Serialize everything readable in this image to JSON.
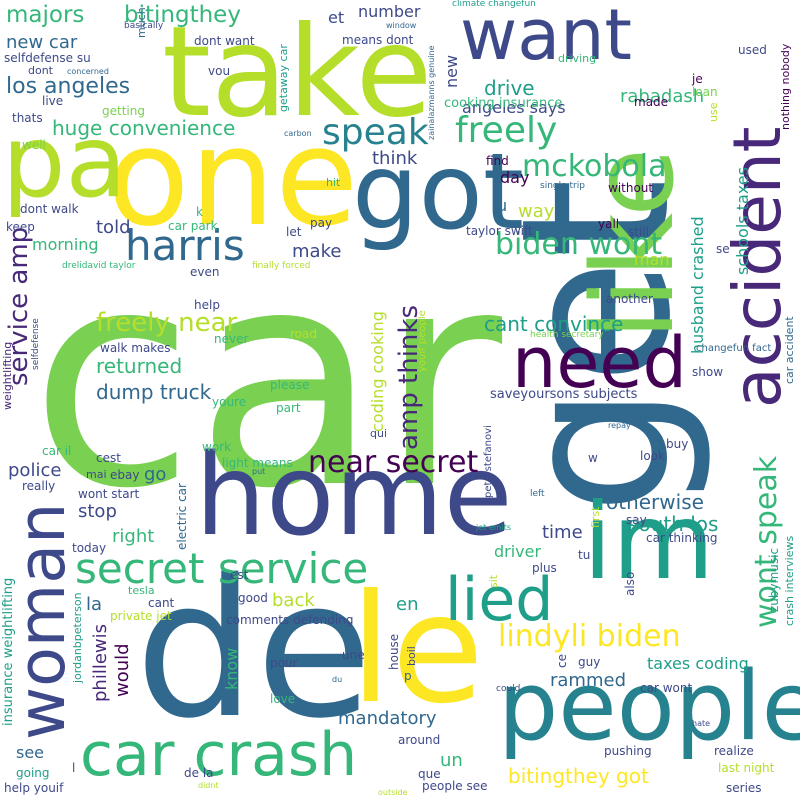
{
  "palette": {
    "yellow": "#fde725",
    "lime": "#b5de2b",
    "green": "#7ad151",
    "emerald": "#35b779",
    "teal": "#1f9e89",
    "cyan": "#26828e",
    "blue": "#31688e",
    "indigo": "#3e4989",
    "purple": "#482878",
    "darkpurple": "#440154"
  },
  "words": [
    {
      "text": "car",
      "color": "green"
    },
    {
      "text": "get",
      "color": "blue"
    },
    {
      "text": "like",
      "color": "green"
    },
    {
      "text": "home",
      "color": "indigo"
    },
    {
      "text": "de",
      "color": "blue"
    },
    {
      "text": "le",
      "color": "yellow"
    },
    {
      "text": "one",
      "color": "yellow"
    },
    {
      "text": "pa",
      "color": "lime"
    },
    {
      "text": "take",
      "color": "lime"
    },
    {
      "text": "im",
      "color": "teal"
    },
    {
      "text": "people",
      "color": "cyan"
    },
    {
      "text": "got",
      "color": "blue"
    },
    {
      "text": "accident",
      "color": "purple"
    },
    {
      "text": "want",
      "color": "indigo"
    },
    {
      "text": "need",
      "color": "darkpurple"
    },
    {
      "text": "woman",
      "color": "indigo"
    },
    {
      "text": "car crash",
      "color": "emerald"
    },
    {
      "text": "lied",
      "color": "teal"
    },
    {
      "text": "secret service",
      "color": "emerald"
    },
    {
      "text": "harris",
      "color": "blue"
    },
    {
      "text": "speak",
      "color": "cyan"
    },
    {
      "text": "freely",
      "color": "emerald"
    },
    {
      "text": "biden wont",
      "color": "emerald"
    },
    {
      "text": "lindyli biden",
      "color": "yellow"
    },
    {
      "text": "near secret",
      "color": "darkpurple"
    },
    {
      "text": "wont speak",
      "color": "emerald"
    },
    {
      "text": "mckobola",
      "color": "emerald"
    },
    {
      "text": "freely near",
      "color": "lime"
    },
    {
      "text": "amp thinks",
      "color": "purple"
    },
    {
      "text": "service amp",
      "color": "purple"
    },
    {
      "text": "majors",
      "color": "emerald"
    },
    {
      "text": "bitingthey",
      "color": "emerald"
    },
    {
      "text": "huge convenience",
      "color": "emerald"
    },
    {
      "text": "los angeles",
      "color": "blue"
    },
    {
      "text": "cant convince",
      "color": "teal"
    },
    {
      "text": "dump truck",
      "color": "blue"
    },
    {
      "text": "returned",
      "color": "emerald"
    },
    {
      "text": "south los",
      "color": "teal"
    },
    {
      "text": "otherwise",
      "color": "blue"
    },
    {
      "text": "bitingthey got",
      "color": "yellow"
    },
    {
      "text": "mandatory",
      "color": "blue"
    },
    {
      "text": "rammed",
      "color": "blue"
    },
    {
      "text": "taxes coding",
      "color": "teal"
    },
    {
      "text": "drive",
      "color": "teal"
    },
    {
      "text": "angeles says",
      "color": "indigo"
    },
    {
      "text": "new car",
      "color": "blue"
    },
    {
      "text": "rabadash",
      "color": "emerald"
    },
    {
      "text": "schools taxes",
      "color": "teal"
    },
    {
      "text": "husband crashed",
      "color": "teal"
    },
    {
      "text": "coding cooking",
      "color": "lime"
    },
    {
      "text": "phillewis",
      "color": "purple"
    },
    {
      "text": "would",
      "color": "darkpurple"
    },
    {
      "text": "driver",
      "color": "emerald"
    },
    {
      "text": "police",
      "color": "indigo"
    },
    {
      "text": "think",
      "color": "indigo"
    },
    {
      "text": "time",
      "color": "indigo"
    },
    {
      "text": "stop",
      "color": "indigo"
    },
    {
      "text": "right",
      "color": "emerald"
    },
    {
      "text": "back",
      "color": "lime"
    },
    {
      "text": "day",
      "color": "darkpurple"
    },
    {
      "text": "way",
      "color": "lime"
    },
    {
      "text": "man",
      "color": "lime"
    },
    {
      "text": "told",
      "color": "indigo"
    },
    {
      "text": "make",
      "color": "indigo"
    },
    {
      "text": "morning",
      "color": "emerald"
    },
    {
      "text": "go",
      "color": "blue"
    },
    {
      "text": "la",
      "color": "blue"
    },
    {
      "text": "en",
      "color": "teal"
    },
    {
      "text": "un",
      "color": "emerald"
    },
    {
      "text": "know",
      "color": "emerald"
    },
    {
      "text": "see",
      "color": "blue"
    },
    {
      "text": "et",
      "color": "indigo"
    },
    {
      "text": "number",
      "color": "indigo"
    },
    {
      "text": "new",
      "color": "indigo"
    },
    {
      "text": "u",
      "color": "blue"
    },
    {
      "text": "cooking insurance",
      "color": "emerald"
    },
    {
      "text": "saveyoursons subjects",
      "color": "indigo"
    },
    {
      "text": "car accident",
      "color": "blue"
    },
    {
      "text": "crash interviews",
      "color": "teal"
    },
    {
      "text": "insurance weightlifting",
      "color": "teal"
    },
    {
      "text": "selfdefense su",
      "color": "indigo"
    },
    {
      "text": "basically",
      "color": "indigo"
    },
    {
      "text": "much",
      "color": "blue"
    },
    {
      "text": "window",
      "color": "blue"
    },
    {
      "text": "climate changefun",
      "color": "teal"
    },
    {
      "text": "zainalazmanns genuine",
      "color": "blue"
    },
    {
      "text": "means dont",
      "color": "indigo"
    },
    {
      "text": "dont want",
      "color": "indigo"
    },
    {
      "text": "vou",
      "color": "indigo"
    },
    {
      "text": "dont",
      "color": "indigo"
    },
    {
      "text": "concerned",
      "color": "blue"
    },
    {
      "text": "live",
      "color": "indigo"
    },
    {
      "text": "thats",
      "color": "indigo"
    },
    {
      "text": "getting",
      "color": "green"
    },
    {
      "text": "well",
      "color": "green"
    },
    {
      "text": "getaway car",
      "color": "teal"
    },
    {
      "text": "carbon",
      "color": "blue"
    },
    {
      "text": "driving",
      "color": "emerald"
    },
    {
      "text": "used",
      "color": "indigo"
    },
    {
      "text": "nothing nobody",
      "color": "darkpurple"
    },
    {
      "text": "je",
      "color": "darkpurple"
    },
    {
      "text": "loan",
      "color": "green"
    },
    {
      "text": "made",
      "color": "darkpurple"
    },
    {
      "text": "use",
      "color": "lime"
    },
    {
      "text": "find",
      "color": "darkpurple"
    },
    {
      "text": "single trip",
      "color": "blue"
    },
    {
      "text": "without",
      "color": "darkpurple"
    },
    {
      "text": "yall",
      "color": "darkpurple"
    },
    {
      "text": "still",
      "color": "indigo"
    },
    {
      "text": "se",
      "color": "indigo"
    },
    {
      "text": "another",
      "color": "indigo"
    },
    {
      "text": "taylor swift",
      "color": "indigo"
    },
    {
      "text": "hit",
      "color": "emerald"
    },
    {
      "text": "pay",
      "color": "indigo"
    },
    {
      "text": "let",
      "color": "indigo"
    },
    {
      "text": "k",
      "color": "emerald"
    },
    {
      "text": "car park",
      "color": "emerald"
    },
    {
      "text": "dont walk",
      "color": "indigo"
    },
    {
      "text": "keep",
      "color": "indigo"
    },
    {
      "text": "drelidavid taylor",
      "color": "emerald"
    },
    {
      "text": "even",
      "color": "indigo"
    },
    {
      "text": "finally forced",
      "color": "lime"
    },
    {
      "text": "help",
      "color": "indigo"
    },
    {
      "text": "selfdefense",
      "color": "indigo"
    },
    {
      "text": "road",
      "color": "lime"
    },
    {
      "text": "never",
      "color": "emerald"
    },
    {
      "text": "walk makes",
      "color": "indigo"
    },
    {
      "text": "health secretary",
      "color": "green"
    },
    {
      "text": "changefun fact",
      "color": "blue"
    },
    {
      "text": "peterstefanovi",
      "color": "indigo"
    },
    {
      "text": "youif people",
      "color": "lime"
    },
    {
      "text": "show",
      "color": "indigo"
    },
    {
      "text": "please",
      "color": "emerald"
    },
    {
      "text": "youre",
      "color": "emerald"
    },
    {
      "text": "part",
      "color": "emerald"
    },
    {
      "text": "weightlifting",
      "color": "purple"
    },
    {
      "text": "qui",
      "color": "indigo"
    },
    {
      "text": "repay",
      "color": "blue"
    },
    {
      "text": "work",
      "color": "emerald"
    },
    {
      "text": "cest",
      "color": "indigo"
    },
    {
      "text": "light means",
      "color": "emerald"
    },
    {
      "text": "put",
      "color": "blue"
    },
    {
      "text": "car il",
      "color": "emerald"
    },
    {
      "text": "mai",
      "color": "indigo"
    },
    {
      "text": "ebay",
      "color": "indigo"
    },
    {
      "text": "really",
      "color": "indigo"
    },
    {
      "text": "wont start",
      "color": "indigo"
    },
    {
      "text": "electric car",
      "color": "blue"
    },
    {
      "text": "w",
      "color": "indigo"
    },
    {
      "text": "left",
      "color": "blue"
    },
    {
      "text": "buy",
      "color": "indigo"
    },
    {
      "text": "look",
      "color": "indigo"
    },
    {
      "text": "first",
      "color": "lime"
    },
    {
      "text": "say",
      "color": "indigo"
    },
    {
      "text": "car thinking",
      "color": "indigo"
    },
    {
      "text": "jet emits",
      "color": "teal"
    },
    {
      "text": "today",
      "color": "indigo"
    },
    {
      "text": "jordanbpeterson",
      "color": "teal"
    },
    {
      "text": "sit",
      "color": "lime"
    },
    {
      "text": "tu",
      "color": "indigo"
    },
    {
      "text": "plus",
      "color": "indigo"
    },
    {
      "text": "est",
      "color": "indigo"
    },
    {
      "text": "zubymusic",
      "color": "teal"
    },
    {
      "text": "also",
      "color": "indigo"
    },
    {
      "text": "tesla",
      "color": "emerald"
    },
    {
      "text": "cant",
      "color": "indigo"
    },
    {
      "text": "private jet",
      "color": "lime"
    },
    {
      "text": "good",
      "color": "indigo"
    },
    {
      "text": "comments defending",
      "color": "indigo"
    },
    {
      "text": "house",
      "color": "indigo"
    },
    {
      "text": "boil",
      "color": "indigo"
    },
    {
      "text": "une",
      "color": "indigo"
    },
    {
      "text": "ce",
      "color": "indigo"
    },
    {
      "text": "guy",
      "color": "indigo"
    },
    {
      "text": "pour",
      "color": "indigo"
    },
    {
      "text": "p",
      "color": "blue"
    },
    {
      "text": "love",
      "color": "emerald"
    },
    {
      "text": "du",
      "color": "blue"
    },
    {
      "text": "could",
      "color": "indigo"
    },
    {
      "text": "car wont",
      "color": "indigo"
    },
    {
      "text": "around",
      "color": "indigo"
    },
    {
      "text": "pushing",
      "color": "indigo"
    },
    {
      "text": "realize",
      "color": "indigo"
    },
    {
      "text": "hate",
      "color": "indigo"
    },
    {
      "text": "going",
      "color": "teal"
    },
    {
      "text": "l",
      "color": "indigo"
    },
    {
      "text": "de la",
      "color": "indigo"
    },
    {
      "text": "que",
      "color": "indigo"
    },
    {
      "text": "people see",
      "color": "indigo"
    },
    {
      "text": "last night",
      "color": "lime"
    },
    {
      "text": "help youif",
      "color": "indigo"
    },
    {
      "text": "didnt",
      "color": "lime"
    },
    {
      "text": "outside",
      "color": "lime"
    },
    {
      "text": "series",
      "color": "indigo"
    }
  ]
}
